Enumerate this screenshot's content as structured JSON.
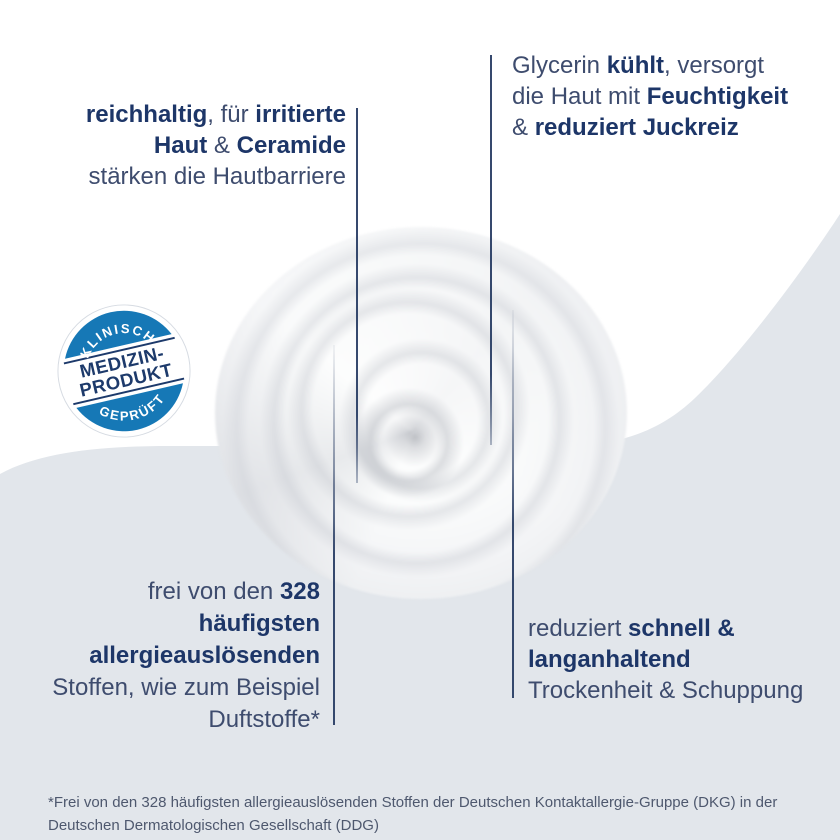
{
  "callouts": {
    "top_left": {
      "lines": [
        [
          {
            "text": "reichhaltig",
            "bold": true
          },
          {
            "text": ", für ",
            "bold": false
          },
          {
            "text": "irritierte",
            "bold": true
          }
        ],
        [
          {
            "text": "Haut",
            "bold": true
          },
          {
            "text": " & ",
            "bold": false
          },
          {
            "text": "Ceramide",
            "bold": true
          }
        ],
        [
          {
            "text": "stärken die Hautbarriere",
            "bold": false
          }
        ]
      ]
    },
    "top_right": {
      "lines": [
        [
          {
            "text": "Glycerin ",
            "bold": false
          },
          {
            "text": "kühlt",
            "bold": true
          },
          {
            "text": ", versorgt",
            "bold": false
          }
        ],
        [
          {
            "text": "die Haut mit ",
            "bold": false
          },
          {
            "text": "Feuchtigkeit",
            "bold": true
          }
        ],
        [
          {
            "text": "& ",
            "bold": false
          },
          {
            "text": "reduziert Juckreiz",
            "bold": true
          }
        ]
      ]
    },
    "bottom_left": {
      "lines": [
        [
          {
            "text": "frei von den ",
            "bold": false
          },
          {
            "text": "328",
            "bold": true
          }
        ],
        [
          {
            "text": "häufigsten",
            "bold": true
          }
        ],
        [
          {
            "text": "allergieauslösenden",
            "bold": true
          }
        ],
        [
          {
            "text": "Stoffen, wie zum Beispiel",
            "bold": false
          }
        ],
        [
          {
            "text": "Duftstoffe*",
            "bold": false
          }
        ]
      ]
    },
    "bottom_right": {
      "lines": [
        [
          {
            "text": "reduziert ",
            "bold": false
          },
          {
            "text": "schnell &",
            "bold": true
          }
        ],
        [
          {
            "text": "langanhaltend",
            "bold": true
          }
        ],
        [
          {
            "text": "Trockenheit & Schuppung",
            "bold": false
          }
        ]
      ]
    }
  },
  "badge": {
    "top_text": "KLINISCH",
    "center_line1": "MEDIZIN-",
    "center_line2": "PRODUKT",
    "bottom_text": "GEPRÜFT"
  },
  "footnote": {
    "line1": "*Frei von den 328 häufigsten allergieauslösenden Stoffen der Deutschen Kontaktallergie-Gruppe (DKG) in der",
    "line2": "Deutschen Dermatologischen Gesellschaft (DDG)"
  },
  "colors": {
    "badge_blue": "#1678b6",
    "navy": "#1d3a6b",
    "text_bold": "#1d3668",
    "text_regular": "#3e4c6e",
    "connector": "#2b3f66",
    "background_bottom": "#e2e6eb",
    "footnote_text": "#4e586e"
  }
}
